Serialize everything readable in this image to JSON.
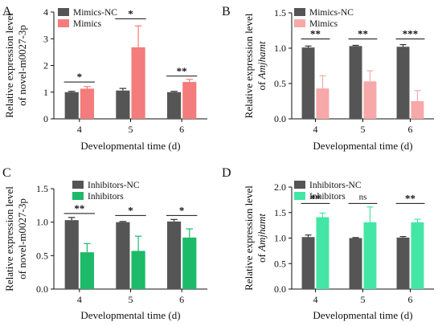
{
  "chart_data": [
    {
      "type": "bar",
      "panel": "A",
      "ylabel_lines": [
        "Relative expression level",
        "of novel-m0027-3p"
      ],
      "xlabel": "Developmental time (d)",
      "categories": [
        "4",
        "5",
        "6"
      ],
      "ylim": [
        0,
        4
      ],
      "yticks": [
        "0",
        "1",
        "2",
        "3",
        "4"
      ],
      "grid": false,
      "legend_position": "top-left",
      "series": [
        {
          "name": "Mimics-NC",
          "color": "#555555",
          "values": [
            1.0,
            1.06,
            1.0
          ],
          "errors": [
            0.03,
            0.08,
            0.03
          ]
        },
        {
          "name": "Mimics",
          "color": "#f47c7c",
          "values": [
            1.13,
            2.68,
            1.38
          ],
          "errors": [
            0.08,
            0.8,
            0.1
          ]
        }
      ],
      "significance": [
        {
          "category": "4",
          "label": "*",
          "level": 1.38
        },
        {
          "category": "5",
          "label": "*",
          "level": 3.75
        },
        {
          "category": "6",
          "label": "**",
          "level": 1.6
        }
      ]
    },
    {
      "type": "bar",
      "panel": "B",
      "ylabel_lines": [
        "Relative expression level",
        "of Amjhamt"
      ],
      "xlabel": "Developmental time (d)",
      "categories": [
        "4",
        "5",
        "6"
      ],
      "ylim": [
        0,
        1.5
      ],
      "yticks": [
        "0.0",
        "0.5",
        "1.0",
        "1.5"
      ],
      "grid": false,
      "legend_position": "top-left",
      "series": [
        {
          "name": "Mimics-NC",
          "color": "#555555",
          "values": [
            1.01,
            1.03,
            1.02
          ],
          "errors": [
            0.02,
            0.01,
            0.03
          ]
        },
        {
          "name": "Mimics",
          "color": "#f7a8a8",
          "values": [
            0.43,
            0.53,
            0.25
          ],
          "errors": [
            0.18,
            0.15,
            0.15
          ]
        }
      ],
      "significance": [
        {
          "category": "4",
          "label": "**",
          "level": 1.13
        },
        {
          "category": "5",
          "label": "**",
          "level": 1.13
        },
        {
          "category": "6",
          "label": "***",
          "level": 1.13
        }
      ]
    },
    {
      "type": "bar",
      "panel": "C",
      "ylabel_lines": [
        "Relative expression level",
        "of novel-m0027-3p"
      ],
      "xlabel": "Developmental time (d)",
      "categories": [
        "4",
        "5",
        "6"
      ],
      "ylim": [
        0,
        1.5
      ],
      "yticks": [
        "0.0",
        "0.5",
        "1.0",
        "1.5"
      ],
      "grid": false,
      "legend_position": "top-left",
      "series": [
        {
          "name": "Inhibitors-NC",
          "color": "#555555",
          "values": [
            1.03,
            1.0,
            1.01
          ],
          "errors": [
            0.04,
            0.01,
            0.03
          ]
        },
        {
          "name": "Inhibitors",
          "color": "#1dba6a",
          "values": [
            0.55,
            0.57,
            0.77
          ],
          "errors": [
            0.13,
            0.22,
            0.13
          ]
        }
      ],
      "significance": [
        {
          "category": "4",
          "label": "**",
          "level": 1.13
        },
        {
          "category": "5",
          "label": "*",
          "level": 1.1
        },
        {
          "category": "6",
          "label": "*",
          "level": 1.1
        }
      ]
    },
    {
      "type": "bar",
      "panel": "D",
      "ylabel_lines": [
        "Relative expression level",
        "of Amjhamt"
      ],
      "xlabel": "Developmental time (d)",
      "categories": [
        "4",
        "5",
        "6"
      ],
      "ylim": [
        0,
        2.0
      ],
      "yticks": [
        "0.0",
        "0.5",
        "1.0",
        "1.5",
        "2.0"
      ],
      "grid": false,
      "legend_position": "top-left",
      "series": [
        {
          "name": "Inhibitors-NC",
          "color": "#555555",
          "values": [
            1.02,
            1.0,
            1.01
          ],
          "errors": [
            0.04,
            0.01,
            0.02
          ]
        },
        {
          "name": "Inhibitors",
          "color": "#44e6a5",
          "values": [
            1.41,
            1.31,
            1.31
          ],
          "errors": [
            0.08,
            0.3,
            0.06
          ]
        }
      ],
      "significance": [
        {
          "category": "4",
          "label": "**",
          "level": 1.68
        },
        {
          "category": "5",
          "label": "ns",
          "level": 1.68
        },
        {
          "category": "6",
          "label": "**",
          "level": 1.68
        }
      ]
    }
  ]
}
